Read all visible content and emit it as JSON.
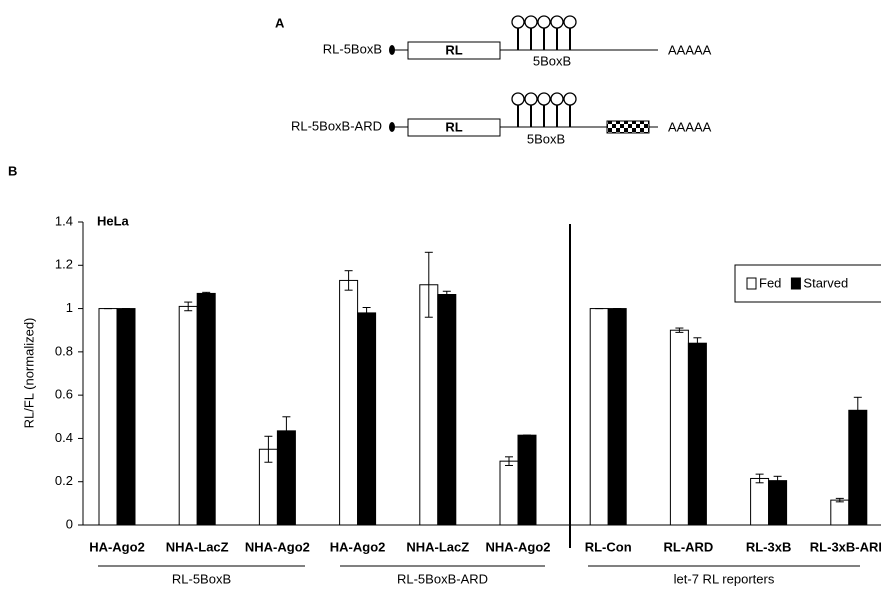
{
  "panel_a": {
    "label": "A",
    "constructs": [
      {
        "name": "RL-5BoxB",
        "box": "RL",
        "region": "5BoxB",
        "tail": "AAAAA"
      },
      {
        "name": "RL-5BoxB-ARD",
        "box": "RL",
        "region": "5BoxB",
        "tail": "AAAAA"
      }
    ]
  },
  "panel_b_label": "B",
  "chart_data": {
    "type": "bar",
    "annotation": "HeLa",
    "y_label": "RL/FL  (normalized)",
    "categories": [
      "HA-Ago2",
      "NHA-LacZ",
      "NHA-Ago2",
      "HA-Ago2",
      "NHA-LacZ",
      "NHA-Ago2",
      "RL-Con",
      "RL-ARD",
      "RL-3xB",
      "RL-3xB-ARD"
    ],
    "groups": [
      "RL-5BoxB",
      "RL-5BoxB-ARD",
      "let-7 RL reporters"
    ],
    "series": [
      {
        "name": "Fed",
        "color": "#ffffff",
        "values": [
          1,
          1.01,
          0.35,
          1.13,
          1.11,
          0.295,
          1,
          0.9,
          0.215,
          0.115
        ],
        "errors": [
          0,
          0.02,
          0.06,
          0.045,
          0.15,
          0.02,
          0,
          0.01,
          0.02,
          0.008
        ]
      },
      {
        "name": "Starved",
        "color": "#000000",
        "values": [
          1,
          1.07,
          0.435,
          0.98,
          1.065,
          0.415,
          1,
          0.84,
          0.205,
          0.53
        ],
        "errors": [
          0,
          0.005,
          0.065,
          0.025,
          0.015,
          0,
          0,
          0.025,
          0.02,
          0.06
        ]
      }
    ],
    "ylim": [
      0,
      1.4
    ],
    "yticks": [
      0,
      0.2,
      0.4,
      0.6,
      0.8,
      1,
      1.2,
      1.4
    ],
    "legend": "upper right"
  }
}
